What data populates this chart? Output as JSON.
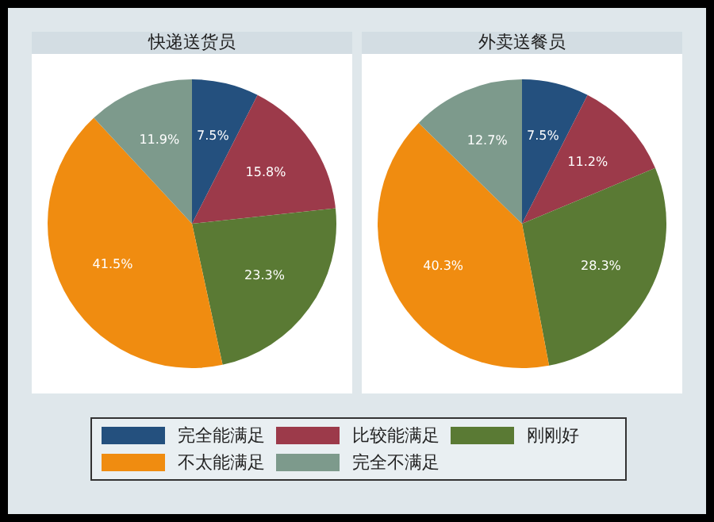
{
  "chart_data": [
    {
      "type": "pie",
      "title": "快递送货员",
      "categories": [
        "完全能满足",
        "比较能满足",
        "刚刚好",
        "不太能满足",
        "完全不满足"
      ],
      "values": [
        7.5,
        15.8,
        23.3,
        41.5,
        11.9
      ],
      "value_labels": [
        "7.5%",
        "15.8%",
        "23.3%",
        "41.5%",
        "11.9%"
      ],
      "colors": [
        "#24507e",
        "#9c3a4a",
        "#5a7a34",
        "#f08c10",
        "#7d9a8c"
      ],
      "legend": "bottom"
    },
    {
      "type": "pie",
      "title": "外卖送餐员",
      "categories": [
        null,
        null,
        null,
        null,
        null
      ],
      "values": [
        7.5,
        11.2,
        28.3,
        40.3,
        12.7
      ],
      "value_labels": [
        "7.5%",
        "11.2%",
        "28.3%",
        "40.3%",
        "12.7%"
      ],
      "colors": [
        "#24507e",
        "#9c3a4a",
        "#5a7a34",
        "#f08c10",
        "#7d9a8c"
      ]
    }
  ]
}
